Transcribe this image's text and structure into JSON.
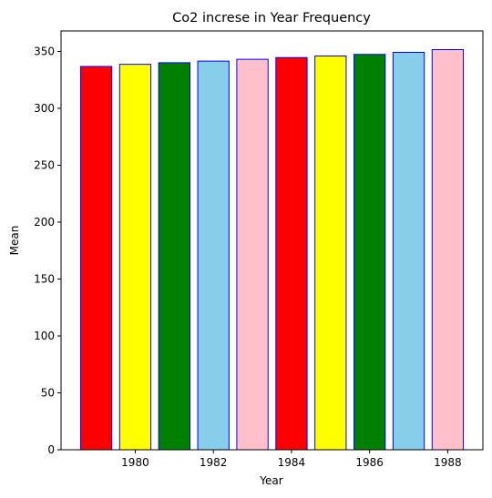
{
  "chart_data": {
    "type": "bar",
    "title": "Co2 increse in Year Frequency",
    "xlabel": "Year",
    "ylabel": "Mean",
    "x": [
      1979,
      1980,
      1981,
      1982,
      1983,
      1984,
      1985,
      1986,
      1987,
      1988
    ],
    "values": [
      336.8,
      338.7,
      340.1,
      341.5,
      343.1,
      344.6,
      346.0,
      347.4,
      349.2,
      351.6
    ],
    "colors": [
      "#ff0000",
      "#ffff00",
      "#008000",
      "#87ceeb",
      "#ffc0cb",
      "#ff0000",
      "#ffff00",
      "#008000",
      "#87ceeb",
      "#ffc0cb"
    ],
    "edge_color": "#0000ff",
    "xlim": [
      1978.1,
      1988.9
    ],
    "ylim": [
      0,
      368
    ],
    "xticks": [
      1980,
      1982,
      1984,
      1986,
      1988
    ],
    "yticks": [
      0,
      50,
      100,
      150,
      200,
      250,
      300,
      350
    ],
    "grid": false,
    "legend": "none"
  }
}
